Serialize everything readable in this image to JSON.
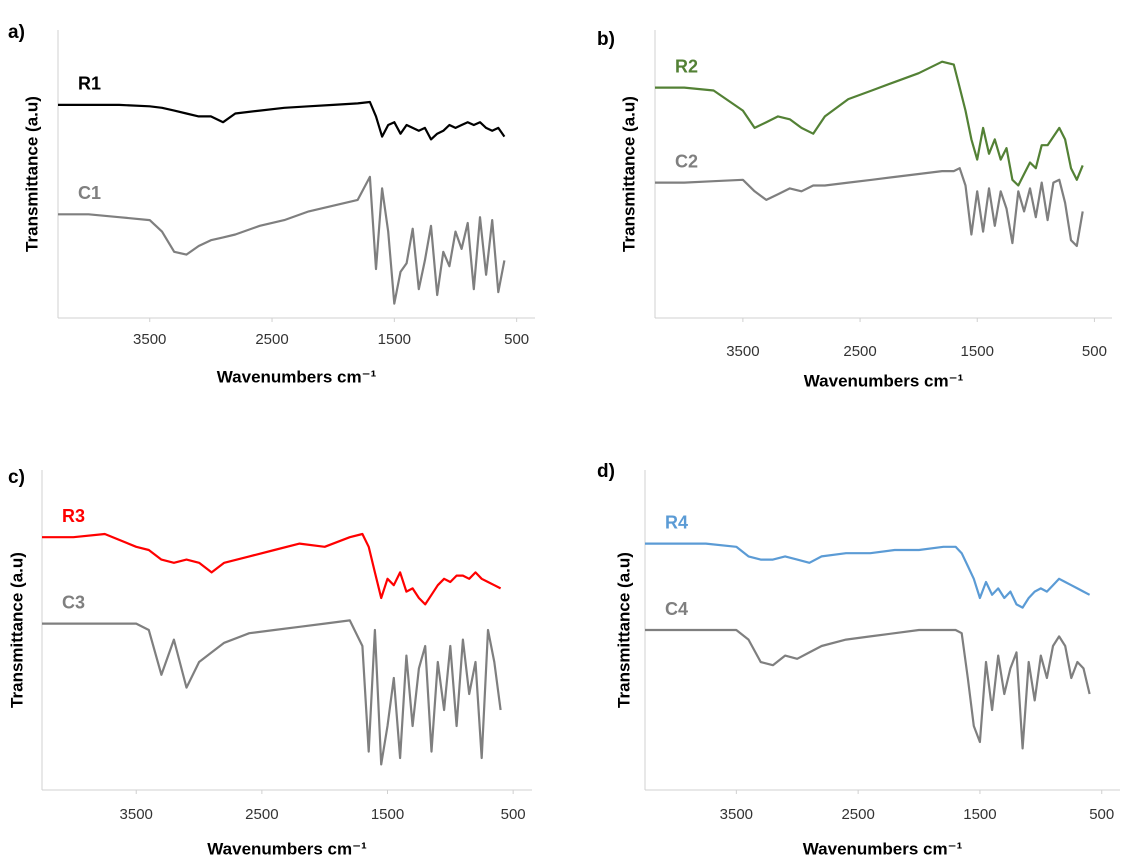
{
  "chart_data": [
    {
      "type": "line",
      "panel_label": "a)",
      "y_label": "Transmittance (a.u)",
      "x_label": "Wavenumbers cm⁻¹",
      "xlim": [
        4250,
        350
      ],
      "ylim": [
        0,
        100
      ],
      "xticks": [
        3500,
        2500,
        1500,
        500
      ],
      "x": [
        4250,
        4000,
        3750,
        3500,
        3400,
        3300,
        3200,
        3100,
        3000,
        2900,
        2800,
        2600,
        2400,
        2200,
        2000,
        1800,
        1700,
        1650,
        1600,
        1550,
        1500,
        1450,
        1400,
        1350,
        1300,
        1250,
        1200,
        1150,
        1100,
        1050,
        1000,
        950,
        900,
        850,
        800,
        750,
        700,
        650,
        600
      ],
      "series": [
        {
          "name": "R1",
          "color": "#000000",
          "values": [
            74,
            74,
            74,
            73.5,
            73,
            72,
            71,
            70,
            70,
            68,
            71,
            72,
            73,
            73.5,
            74,
            74.5,
            75,
            70,
            63,
            67,
            68,
            64,
            67,
            66,
            65,
            66,
            62,
            64,
            65,
            67,
            66,
            67,
            68,
            67,
            68,
            66,
            65,
            66,
            63
          ]
        },
        {
          "name": "C1",
          "color": "#7f7f7f",
          "values": [
            36,
            36,
            35,
            34,
            30,
            23,
            22,
            25,
            27,
            28,
            29,
            32,
            34,
            37,
            39,
            41,
            49,
            17,
            45,
            30,
            5,
            16,
            19,
            31,
            10,
            20,
            32,
            8,
            23,
            18,
            30,
            24,
            33,
            10,
            35,
            15,
            34,
            9,
            20
          ]
        }
      ]
    },
    {
      "type": "line",
      "panel_label": "b)",
      "y_label": "Transmittance (a.u)",
      "x_label": "Wavenumbers cm⁻¹",
      "xlim": [
        4250,
        350
      ],
      "ylim": [
        0,
        100
      ],
      "xticks": [
        3500,
        2500,
        1500,
        500
      ],
      "x": [
        4250,
        4000,
        3750,
        3500,
        3400,
        3300,
        3200,
        3100,
        3000,
        2900,
        2800,
        2600,
        2400,
        2200,
        2000,
        1800,
        1700,
        1650,
        1600,
        1550,
        1500,
        1450,
        1400,
        1350,
        1300,
        1250,
        1200,
        1150,
        1100,
        1050,
        1000,
        950,
        900,
        850,
        800,
        750,
        700,
        650,
        600
      ],
      "series": [
        {
          "name": "R2",
          "color": "#538135",
          "values": [
            80,
            80,
            79,
            72,
            66,
            68,
            70,
            69,
            66,
            64,
            70,
            76,
            79,
            82,
            85,
            89,
            88,
            80,
            72,
            62,
            55,
            66,
            57,
            62,
            55,
            59,
            48,
            46,
            50,
            54,
            52,
            60,
            60,
            63,
            66,
            62,
            52,
            48,
            53
          ]
        },
        {
          "name": "C2",
          "color": "#7f7f7f",
          "values": [
            47,
            47,
            47.5,
            48,
            44,
            41,
            43,
            45,
            44,
            46,
            46,
            47,
            48,
            49,
            50,
            51,
            51,
            52,
            46,
            29,
            44,
            30,
            45,
            32,
            44,
            38,
            26,
            44,
            37,
            45,
            35,
            47,
            34,
            47,
            48,
            40,
            27,
            25,
            37
          ]
        }
      ]
    },
    {
      "type": "line",
      "panel_label": "c)",
      "y_label": "Transmittance (a.u)",
      "x_label": "Wavenumbers cm⁻¹",
      "xlim": [
        4250,
        350
      ],
      "ylim": [
        0,
        100
      ],
      "xticks": [
        3500,
        2500,
        1500,
        500
      ],
      "x": [
        4250,
        4000,
        3750,
        3500,
        3400,
        3300,
        3200,
        3100,
        3000,
        2900,
        2800,
        2600,
        2400,
        2200,
        2000,
        1800,
        1700,
        1650,
        1600,
        1550,
        1500,
        1450,
        1400,
        1350,
        1300,
        1250,
        1200,
        1150,
        1100,
        1050,
        1000,
        950,
        900,
        850,
        800,
        750,
        700,
        650,
        600
      ],
      "series": [
        {
          "name": "R3",
          "color": "#ff0000",
          "values": [
            79,
            79,
            80,
            76,
            75,
            72,
            71,
            72,
            71,
            68,
            71,
            73,
            75,
            77,
            76,
            79,
            80,
            76,
            68,
            60,
            66,
            64,
            68,
            62,
            63,
            60,
            58,
            61,
            64,
            66,
            65,
            67,
            67,
            66,
            68,
            66,
            65,
            64,
            63
          ]
        },
        {
          "name": "C3",
          "color": "#7f7f7f",
          "values": [
            52,
            52,
            52,
            52,
            50,
            36,
            47,
            32,
            40,
            43,
            46,
            49,
            50,
            51,
            52,
            53,
            45,
            12,
            50,
            8,
            20,
            35,
            10,
            42,
            20,
            38,
            45,
            12,
            40,
            25,
            45,
            20,
            47,
            30,
            40,
            10,
            50,
            40,
            25
          ]
        }
      ]
    },
    {
      "type": "line",
      "panel_label": "d)",
      "y_label": "Transmittance (a.u)",
      "x_label": "Wavenumbers cm⁻¹",
      "xlim": [
        4250,
        350
      ],
      "ylim": [
        0,
        100
      ],
      "xticks": [
        3500,
        2500,
        1500,
        500
      ],
      "x": [
        4250,
        4000,
        3750,
        3500,
        3400,
        3300,
        3200,
        3100,
        3000,
        2900,
        2800,
        2600,
        2400,
        2200,
        2000,
        1800,
        1700,
        1650,
        1600,
        1550,
        1500,
        1450,
        1400,
        1350,
        1300,
        1250,
        1200,
        1150,
        1100,
        1050,
        1000,
        950,
        900,
        850,
        800,
        750,
        700,
        650,
        600
      ],
      "series": [
        {
          "name": "R4",
          "color": "#5b9bd5",
          "values": [
            77,
            77,
            77,
            76,
            73,
            72,
            72,
            73,
            72,
            71,
            73,
            74,
            74,
            75,
            75,
            76,
            76,
            74,
            70,
            66,
            60,
            65,
            61,
            63,
            60,
            62,
            58,
            57,
            60,
            62,
            63,
            62,
            64,
            66,
            65,
            64,
            63,
            62,
            61
          ]
        },
        {
          "name": "C4",
          "color": "#7f7f7f",
          "values": [
            50,
            50,
            50,
            50,
            47,
            40,
            39,
            42,
            41,
            43,
            45,
            47,
            48,
            49,
            50,
            50,
            50,
            49,
            35,
            20,
            15,
            40,
            25,
            42,
            30,
            38,
            43,
            13,
            40,
            28,
            42,
            35,
            45,
            48,
            45,
            35,
            40,
            38,
            30
          ]
        }
      ]
    }
  ]
}
